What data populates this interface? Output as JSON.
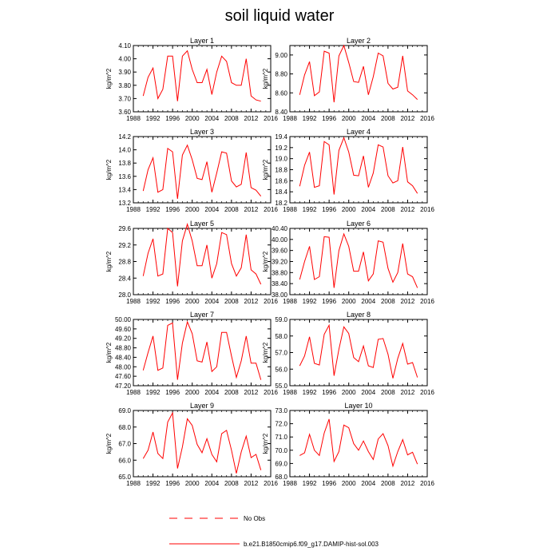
{
  "figure": {
    "title": "soil liquid water",
    "legend": [
      {
        "label": "No Obs",
        "style": "dashed",
        "color": "#ff0000"
      },
      {
        "label": "b.e21.B1850cmip6.f09_g17.DAMIP-hist-sol.003",
        "style": "solid",
        "color": "#ff0000"
      }
    ]
  },
  "chart_data": [
    {
      "type": "line",
      "title": "Layer 1",
      "ylabel": "kg/m^2",
      "xlim": [
        1988,
        2016
      ],
      "ylim": [
        3.6,
        4.1
      ],
      "xticks": [
        "1988",
        "1992",
        "1996",
        "2000",
        "2004",
        "2008",
        "2012",
        "2016"
      ],
      "yticks": [
        "3.60",
        "3.70",
        "3.80",
        "3.90",
        "4.00",
        "4.10"
      ],
      "x": [
        1990,
        1991,
        1992,
        1993,
        1994,
        1995,
        1996,
        1997,
        1998,
        1999,
        2000,
        2001,
        2002,
        2003,
        2004,
        2005,
        2006,
        2007,
        2008,
        2009,
        2010,
        2011,
        2012,
        2013,
        2014
      ],
      "series": [
        {
          "color": "#ff0000",
          "values": [
            3.72,
            3.86,
            3.93,
            3.7,
            3.77,
            4.02,
            4.02,
            3.68,
            4.02,
            4.06,
            3.92,
            3.82,
            3.82,
            3.92,
            3.73,
            3.9,
            4.02,
            3.98,
            3.82,
            3.8,
            3.8,
            4.0,
            3.72,
            3.69,
            3.68
          ]
        }
      ]
    },
    {
      "type": "line",
      "title": "Layer 2",
      "ylabel": "kg/m^2",
      "xlim": [
        1988,
        2016
      ],
      "ylim": [
        8.4,
        9.1
      ],
      "xticks": [
        "1988",
        "1992",
        "1996",
        "2000",
        "2004",
        "2008",
        "2012",
        "2016"
      ],
      "yticks": [
        "8.40",
        "8.60",
        "8.80",
        "9.00"
      ],
      "x": [
        1990,
        1991,
        1992,
        1993,
        1994,
        1995,
        1996,
        1997,
        1998,
        1999,
        2000,
        2001,
        2002,
        2003,
        2004,
        2005,
        2006,
        2007,
        2008,
        2009,
        2010,
        2011,
        2012,
        2013,
        2014
      ],
      "series": [
        {
          "color": "#ff0000",
          "values": [
            8.58,
            8.79,
            8.93,
            8.57,
            8.61,
            9.04,
            9.02,
            8.5,
            8.99,
            9.1,
            8.92,
            8.72,
            8.71,
            8.88,
            8.58,
            8.77,
            9.02,
            8.99,
            8.7,
            8.64,
            8.66,
            8.99,
            8.62,
            8.58,
            8.53
          ]
        }
      ]
    },
    {
      "type": "line",
      "title": "Layer 3",
      "ylabel": "kg/m^2",
      "xlim": [
        1988,
        2016
      ],
      "ylim": [
        13.2,
        14.2
      ],
      "xticks": [
        "1988",
        "1992",
        "1996",
        "2000",
        "2004",
        "2008",
        "2012",
        "2016"
      ],
      "yticks": [
        "13.2",
        "13.4",
        "13.6",
        "13.8",
        "14.0",
        "14.2"
      ],
      "x": [
        1990,
        1991,
        1992,
        1993,
        1994,
        1995,
        1996,
        1997,
        1998,
        1999,
        2000,
        2001,
        2002,
        2003,
        2004,
        2005,
        2006,
        2007,
        2008,
        2009,
        2010,
        2011,
        2012,
        2013,
        2014
      ],
      "series": [
        {
          "color": "#ff0000",
          "values": [
            13.38,
            13.7,
            13.88,
            13.36,
            13.4,
            14.02,
            13.97,
            13.26,
            13.92,
            14.07,
            13.85,
            13.57,
            13.55,
            13.82,
            13.36,
            13.65,
            13.97,
            13.95,
            13.53,
            13.44,
            13.48,
            13.96,
            13.43,
            13.39,
            13.3
          ]
        }
      ]
    },
    {
      "type": "line",
      "title": "Layer 4",
      "ylabel": "kg/m^2",
      "xlim": [
        1988,
        2016
      ],
      "ylim": [
        18.2,
        19.4
      ],
      "xticks": [
        "1988",
        "1992",
        "1996",
        "2000",
        "2004",
        "2008",
        "2012",
        "2016"
      ],
      "yticks": [
        "18.2",
        "18.4",
        "18.6",
        "18.8",
        "19.0",
        "19.2",
        "19.4"
      ],
      "x": [
        1990,
        1991,
        1992,
        1993,
        1994,
        1995,
        1996,
        1997,
        1998,
        1999,
        2000,
        2001,
        2002,
        2003,
        2004,
        2005,
        2006,
        2007,
        2008,
        2009,
        2010,
        2011,
        2012,
        2013,
        2014
      ],
      "series": [
        {
          "color": "#ff0000",
          "values": [
            18.5,
            18.88,
            19.12,
            18.48,
            18.51,
            19.31,
            19.25,
            18.35,
            19.15,
            19.38,
            19.12,
            18.7,
            18.69,
            19.05,
            18.48,
            18.74,
            19.25,
            19.21,
            18.69,
            18.56,
            18.6,
            19.21,
            18.58,
            18.51,
            18.37
          ]
        }
      ]
    },
    {
      "type": "line",
      "title": "Layer 5",
      "ylabel": "kg/m^2",
      "xlim": [
        1988,
        2016
      ],
      "ylim": [
        28.0,
        29.6
      ],
      "xticks": [
        "1988",
        "1992",
        "1996",
        "2000",
        "2004",
        "2008",
        "2012",
        "2016"
      ],
      "yticks": [
        "28.0",
        "28.4",
        "28.8",
        "29.2",
        "29.6"
      ],
      "x": [
        1990,
        1991,
        1992,
        1993,
        1994,
        1995,
        1996,
        1997,
        1998,
        1999,
        2000,
        2001,
        2002,
        2003,
        2004,
        2005,
        2006,
        2007,
        2008,
        2009,
        2010,
        2011,
        2012,
        2013,
        2014
      ],
      "series": [
        {
          "color": "#ff0000",
          "values": [
            28.45,
            29.0,
            29.35,
            28.45,
            28.5,
            29.6,
            29.5,
            28.2,
            29.3,
            29.7,
            29.3,
            28.7,
            28.7,
            29.2,
            28.4,
            28.75,
            29.5,
            29.45,
            28.75,
            28.45,
            28.65,
            29.45,
            28.6,
            28.5,
            28.25
          ]
        }
      ]
    },
    {
      "type": "line",
      "title": "Layer 6",
      "ylabel": "kg/m^2",
      "xlim": [
        1988,
        2016
      ],
      "ylim": [
        38.0,
        40.4
      ],
      "xticks": [
        "1988",
        "1992",
        "1996",
        "2000",
        "2004",
        "2008",
        "2012",
        "2016"
      ],
      "yticks": [
        "38.00",
        "38.40",
        "38.80",
        "39.20",
        "39.60",
        "40.00",
        "40.40"
      ],
      "x": [
        1990,
        1991,
        1992,
        1993,
        1994,
        1995,
        1996,
        1997,
        1998,
        1999,
        2000,
        2001,
        2002,
        2003,
        2004,
        2005,
        2006,
        2007,
        2008,
        2009,
        2010,
        2011,
        2012,
        2013,
        2014
      ],
      "series": [
        {
          "color": "#ff0000",
          "values": [
            38.55,
            39.2,
            39.75,
            38.55,
            38.65,
            40.1,
            40.08,
            38.25,
            39.6,
            40.2,
            39.75,
            38.85,
            38.85,
            39.55,
            38.5,
            38.75,
            39.95,
            39.9,
            38.95,
            38.45,
            38.8,
            39.85,
            38.75,
            38.65,
            38.25
          ]
        }
      ]
    },
    {
      "type": "line",
      "title": "Layer 7",
      "ylabel": "kg/m^2",
      "xlim": [
        1988,
        2016
      ],
      "ylim": [
        47.2,
        50.0
      ],
      "xticks": [
        "1988",
        "1992",
        "1996",
        "2000",
        "2004",
        "2008",
        "2012",
        "2016"
      ],
      "yticks": [
        "47.20",
        "47.60",
        "48.00",
        "48.40",
        "48.80",
        "49.20",
        "49.60",
        "50.00"
      ],
      "x": [
        1990,
        1991,
        1992,
        1993,
        1994,
        1995,
        1996,
        1997,
        1998,
        1999,
        2000,
        2001,
        2002,
        2003,
        2004,
        2005,
        2006,
        2007,
        2008,
        2009,
        2010,
        2011,
        2012,
        2013,
        2014
      ],
      "series": [
        {
          "color": "#ff0000",
          "values": [
            47.85,
            48.6,
            49.3,
            47.85,
            47.95,
            49.75,
            49.85,
            47.45,
            49.0,
            49.9,
            49.4,
            48.25,
            48.2,
            49.05,
            47.8,
            48.0,
            49.45,
            49.45,
            48.45,
            47.55,
            48.25,
            49.3,
            48.15,
            48.15,
            47.45
          ]
        }
      ]
    },
    {
      "type": "line",
      "title": "Layer 8",
      "ylabel": "kg/m^2",
      "xlim": [
        1988,
        2016
      ],
      "ylim": [
        55.0,
        59.0
      ],
      "xticks": [
        "1988",
        "1992",
        "1996",
        "2000",
        "2004",
        "2008",
        "2012",
        "2016"
      ],
      "yticks": [
        "55.0",
        "56.0",
        "57.0",
        "58.0",
        "59.0"
      ],
      "x": [
        1990,
        1991,
        1992,
        1993,
        1994,
        1995,
        1996,
        1997,
        1998,
        1999,
        2000,
        2001,
        2002,
        2003,
        2004,
        2005,
        2006,
        2007,
        2008,
        2009,
        2010,
        2011,
        2012,
        2013,
        2014
      ],
      "series": [
        {
          "color": "#ff0000",
          "values": [
            56.2,
            56.8,
            57.95,
            56.35,
            56.25,
            58.1,
            58.65,
            55.6,
            57.2,
            58.55,
            58.15,
            56.7,
            56.45,
            57.4,
            56.2,
            56.1,
            57.8,
            57.85,
            56.9,
            55.45,
            56.65,
            57.55,
            56.3,
            56.4,
            55.5
          ]
        }
      ]
    },
    {
      "type": "line",
      "title": "Layer 9",
      "ylabel": "kg/m^2",
      "xlim": [
        1988,
        2016
      ],
      "ylim": [
        65.0,
        69.0
      ],
      "xticks": [
        "1988",
        "1992",
        "1996",
        "2000",
        "2004",
        "2008",
        "2012",
        "2016"
      ],
      "yticks": [
        "65.0",
        "66.0",
        "67.0",
        "68.0",
        "69.0"
      ],
      "x": [
        1990,
        1991,
        1992,
        1993,
        1994,
        1995,
        1996,
        1997,
        1998,
        1999,
        2000,
        2001,
        2002,
        2003,
        2004,
        2005,
        2006,
        2007,
        2008,
        2009,
        2010,
        2011,
        2012,
        2013,
        2014
      ],
      "series": [
        {
          "color": "#ff0000",
          "values": [
            66.1,
            66.6,
            67.7,
            66.4,
            66.1,
            68.3,
            68.85,
            65.5,
            66.8,
            68.5,
            68.1,
            66.95,
            66.45,
            67.3,
            66.35,
            65.9,
            67.6,
            67.8,
            66.6,
            65.2,
            66.5,
            67.45,
            66.15,
            66.35,
            65.4
          ]
        }
      ]
    },
    {
      "type": "line",
      "title": "Layer 10",
      "ylabel": "kg/m^2",
      "xlim": [
        1988,
        2016
      ],
      "ylim": [
        68.0,
        73.0
      ],
      "xticks": [
        "1988",
        "1992",
        "1996",
        "2000",
        "2004",
        "2008",
        "2012",
        "2016"
      ],
      "yticks": [
        "68.0",
        "69.0",
        "70.0",
        "71.0",
        "72.0",
        "73.0"
      ],
      "x": [
        1990,
        1991,
        1992,
        1993,
        1994,
        1995,
        1996,
        1997,
        1998,
        1999,
        2000,
        2001,
        2002,
        2003,
        2004,
        2005,
        2006,
        2007,
        2008,
        2009,
        2010,
        2011,
        2012,
        2013,
        2014
      ],
      "series": [
        {
          "color": "#ff0000",
          "values": [
            69.6,
            69.8,
            71.2,
            70.0,
            69.6,
            71.3,
            72.35,
            69.15,
            69.9,
            71.9,
            71.7,
            70.5,
            70.0,
            70.7,
            69.9,
            69.3,
            70.85,
            71.25,
            70.35,
            68.8,
            69.9,
            70.8,
            69.65,
            69.85,
            68.95
          ]
        }
      ]
    }
  ]
}
